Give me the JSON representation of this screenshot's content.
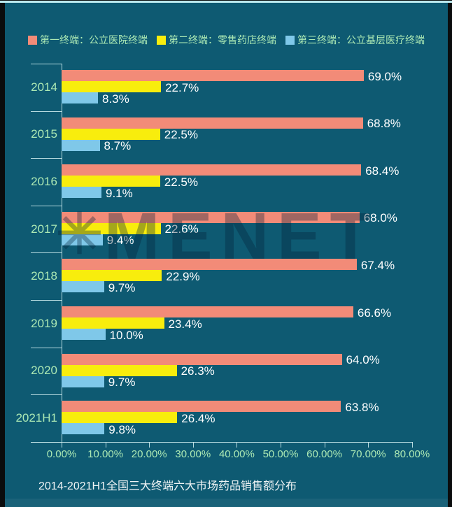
{
  "legend": {
    "items": [
      {
        "label": "第一终端：公立医院终端",
        "color": "#F28B78"
      },
      {
        "label": "第二终端：零售药店终端",
        "color": "#F8ED0D"
      },
      {
        "label": "第三终端：公立基层医疗终端",
        "color": "#7FC8E9"
      }
    ]
  },
  "chart_data": {
    "type": "bar",
    "orientation": "horizontal",
    "title": "2014-2021H1全国三大终端六大市场药品销售额分布",
    "categories": [
      "2014",
      "2015",
      "2016",
      "2017",
      "2018",
      "2019",
      "2020",
      "2021H1"
    ],
    "series": [
      {
        "name": "第一终端：公立医院终端",
        "color": "#F28B78",
        "values": [
          69.0,
          68.8,
          68.4,
          68.0,
          67.4,
          66.6,
          64.0,
          63.8
        ]
      },
      {
        "name": "第二终端：零售药店终端",
        "color": "#F8ED0D",
        "values": [
          22.7,
          22.5,
          22.5,
          22.6,
          22.9,
          23.4,
          26.3,
          26.4
        ]
      },
      {
        "name": "第三终端：公立基层医疗终端",
        "color": "#7FC8E9",
        "values": [
          8.3,
          8.7,
          9.1,
          9.4,
          9.7,
          10.0,
          9.7,
          9.8
        ]
      }
    ],
    "x_ticks": [
      "0.00%",
      "10.00%",
      "20.00%",
      "30.00%",
      "40.00%",
      "50.00%",
      "60.00%",
      "70.00%",
      "80.00%"
    ],
    "xlim": [
      0,
      80
    ],
    "value_suffix": "%",
    "value_decimals": 1,
    "legend_position": "top",
    "grid": false
  },
  "watermark": {
    "icon": "✳",
    "text": "MENET"
  },
  "footer": {
    "title": "2014-2021H1全国三大终端六大市场药品销售额分布"
  },
  "colors": {
    "background": "#0E5A72",
    "axis": "#C9E8EB",
    "category_text": "#ACE9B4",
    "value_text": "#FFFFFF",
    "title_text": "#EFF4F5"
  }
}
